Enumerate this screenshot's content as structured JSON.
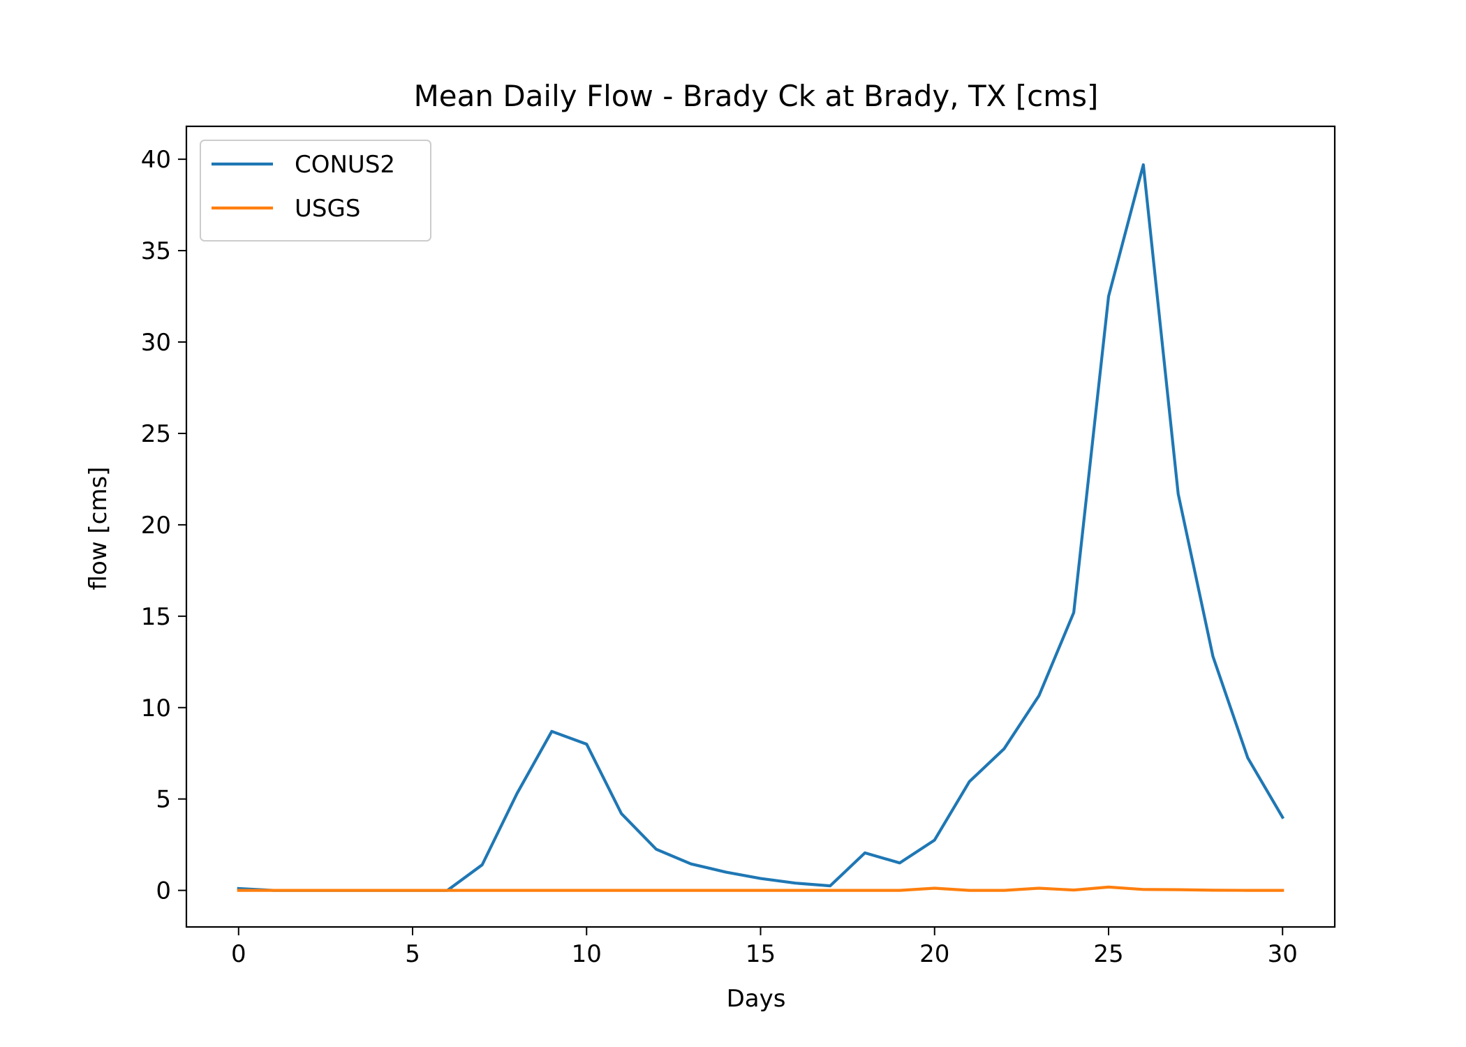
{
  "chart_data": {
    "type": "line",
    "title": "Mean Daily Flow - Brady Ck at Brady, TX [cms]",
    "xlabel": "Days",
    "ylabel": "flow [cms]",
    "xlim": [
      -1.5,
      31.5
    ],
    "ylim": [
      -2.0,
      41.8
    ],
    "xticks": [
      0,
      5,
      10,
      15,
      20,
      25,
      30
    ],
    "yticks": [
      0,
      5,
      10,
      15,
      20,
      25,
      30,
      35,
      40
    ],
    "grid": false,
    "legend_position": "top-left",
    "x": [
      0,
      1,
      2,
      3,
      4,
      5,
      6,
      7,
      8,
      9,
      10,
      11,
      12,
      13,
      14,
      15,
      16,
      17,
      18,
      19,
      20,
      21,
      22,
      23,
      24,
      25,
      26,
      27,
      28,
      29,
      30
    ],
    "series": [
      {
        "name": "CONUS2",
        "color": "#1f77b4",
        "values": [
          0.1,
          0.0,
          0.0,
          0.0,
          0.0,
          0.0,
          0.0,
          1.4,
          5.3,
          8.7,
          8.0,
          4.2,
          2.25,
          1.45,
          1.0,
          0.65,
          0.4,
          0.25,
          2.05,
          1.5,
          2.75,
          5.95,
          7.75,
          10.65,
          15.2,
          32.5,
          39.7,
          21.7,
          12.8,
          7.25,
          4.0
        ]
      },
      {
        "name": "USGS",
        "color": "#ff7f0e",
        "values": [
          0.0,
          0.0,
          0.0,
          0.0,
          0.0,
          0.0,
          0.0,
          0.0,
          0.0,
          0.0,
          0.0,
          0.0,
          0.0,
          0.0,
          0.0,
          0.0,
          0.0,
          0.0,
          0.0,
          0.0,
          0.12,
          0.0,
          0.0,
          0.12,
          0.02,
          0.18,
          0.05,
          0.04,
          0.01,
          0.0,
          0.0
        ]
      }
    ]
  }
}
